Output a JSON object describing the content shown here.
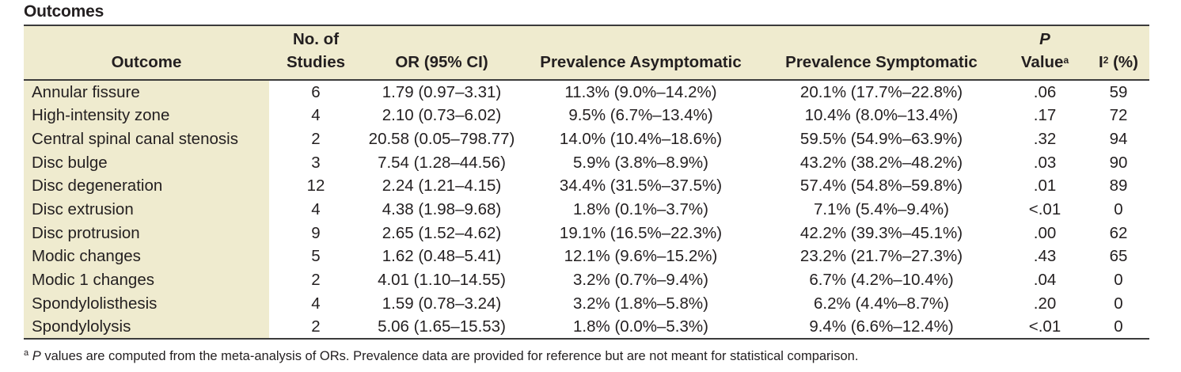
{
  "title": "Outcomes",
  "headers": {
    "outcome": "Outcome",
    "studies_line1": "No. of",
    "studies_line2": "Studies",
    "or": "OR (95% CI)",
    "prev_asym": "Prevalence Asymptomatic",
    "prev_sym": "Prevalence Symptomatic",
    "p_line1": "P",
    "p_line2": "Value",
    "p_sup": "a",
    "i2_letter": "I",
    "i2_sup": "2",
    "i2_unit": "(%)"
  },
  "rows": [
    {
      "outcome": "Annular fissure",
      "studies": "6",
      "or": "1.79 (0.97–3.31)",
      "asym": "11.3% (9.0%–14.2%)",
      "sym": "20.1% (17.7%–22.8%)",
      "p": ".06",
      "i2": "59"
    },
    {
      "outcome": "High-intensity zone",
      "studies": "4",
      "or": "2.10 (0.73–6.02)",
      "asym": "9.5% (6.7%–13.4%)",
      "sym": "10.4% (8.0%–13.4%)",
      "p": ".17",
      "i2": "72"
    },
    {
      "outcome": "Central spinal canal stenosis",
      "studies": "2",
      "or": "20.58 (0.05–798.77)",
      "asym": "14.0% (10.4%–18.6%)",
      "sym": "59.5% (54.9%–63.9%)",
      "p": ".32",
      "i2": "94"
    },
    {
      "outcome": "Disc bulge",
      "studies": "3",
      "or": "7.54 (1.28–44.56)",
      "asym": "5.9% (3.8%–8.9%)",
      "sym": "43.2% (38.2%–48.2%)",
      "p": ".03",
      "i2": "90"
    },
    {
      "outcome": "Disc degeneration",
      "studies": "12",
      "or": "2.24 (1.21–4.15)",
      "asym": "34.4% (31.5%–37.5%)",
      "sym": "57.4% (54.8%–59.8%)",
      "p": ".01",
      "i2": "89"
    },
    {
      "outcome": "Disc extrusion",
      "studies": "4",
      "or": "4.38 (1.98–9.68)",
      "asym": "1.8% (0.1%–3.7%)",
      "sym": "7.1% (5.4%–9.4%)",
      "p": "<.01",
      "i2": "0"
    },
    {
      "outcome": "Disc protrusion",
      "studies": "9",
      "or": "2.65 (1.52–4.62)",
      "asym": "19.1% (16.5%–22.3%)",
      "sym": "42.2% (39.3%–45.1%)",
      "p": ".00",
      "i2": "62"
    },
    {
      "outcome": "Modic changes",
      "studies": "5",
      "or": "1.62 (0.48–5.41)",
      "asym": "12.1% (9.6%–15.2%)",
      "sym": "23.2% (21.7%–27.3%)",
      "p": ".43",
      "i2": "65"
    },
    {
      "outcome": "Modic 1 changes",
      "studies": "2",
      "or": "4.01 (1.10–14.55)",
      "asym": "3.2% (0.7%–9.4%)",
      "sym": "6.7% (4.2%–10.4%)",
      "p": ".04",
      "i2": "0"
    },
    {
      "outcome": "Spondylolisthesis",
      "studies": "4",
      "or": "1.59 (0.78–3.24)",
      "asym": "3.2% (1.8%–5.8%)",
      "sym": "6.2% (4.4%–8.7%)",
      "p": ".20",
      "i2": "0"
    },
    {
      "outcome": "Spondylolysis",
      "studies": "2",
      "or": "5.06 (1.65–15.53)",
      "asym": "1.8% (0.0%–5.3%)",
      "sym": "9.4% (6.6%–12.4%)",
      "p": "<.01",
      "i2": "0"
    }
  ],
  "footnote": {
    "marker": "a",
    "p_letter": "P",
    "text": " values are computed from the meta-analysis of ORs. Prevalence data are provided for reference but are not meant for statistical comparison."
  },
  "colors": {
    "header_bg": "#efebcf",
    "rule": "#3b3b3b",
    "text": "#231f20"
  }
}
